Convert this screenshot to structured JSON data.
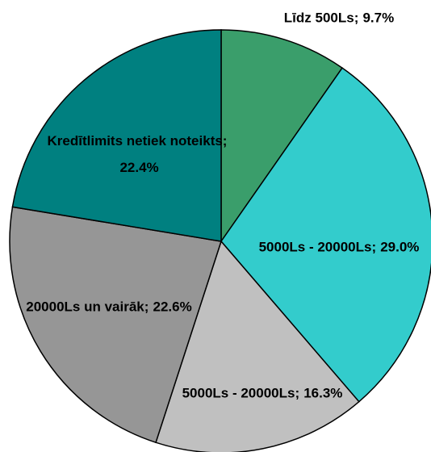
{
  "chart_data": {
    "type": "pie",
    "categories": [
      "Līdz 500Ls;",
      "5000Ls - 20000Ls;",
      "5000Ls - 20000Ls;",
      "20000Ls un vairāk;",
      "Kredītlimits netiek noteikts;"
    ],
    "values": [
      9.7,
      29.0,
      16.3,
      22.6,
      22.4
    ],
    "value_labels": [
      "9.7%",
      "29.0%",
      "16.3%",
      "22.6%",
      "22.4%"
    ],
    "colors": [
      "#3a9e6b",
      "#33cccc",
      "#c0c0c0",
      "#969696",
      "#008080"
    ]
  }
}
